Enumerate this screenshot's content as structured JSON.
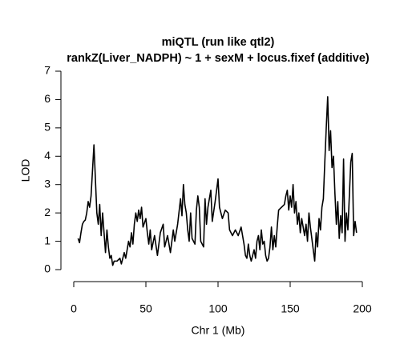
{
  "chart_data": {
    "type": "line",
    "title": "miQTL (run like qtl2)",
    "subtitle": "rankZ(Liver_NADPH) ~ 1 + sexM + locus.fixef (additive)",
    "xlabel": "Chr 1 (Mb)",
    "ylabel": "LOD",
    "xlim": [
      0,
      200
    ],
    "ylim": [
      0,
      7
    ],
    "xticks": [
      0,
      50,
      100,
      150,
      200
    ],
    "yticks": [
      0,
      1,
      2,
      3,
      4,
      5,
      6,
      7
    ],
    "grid": false,
    "series": [
      {
        "name": "LOD",
        "color": "#000000",
        "x": [
          3,
          4,
          5,
          6,
          7,
          8,
          9,
          10,
          11,
          12,
          13,
          14,
          15,
          16,
          17,
          18,
          19,
          20,
          21,
          22,
          23,
          24,
          25,
          26,
          27,
          28,
          30,
          32,
          33,
          35,
          36,
          38,
          39,
          40,
          41,
          42,
          43,
          44,
          45,
          46,
          47,
          48,
          50,
          51,
          52,
          53,
          54,
          56,
          58,
          60,
          62,
          63,
          65,
          67,
          69,
          70,
          72,
          74,
          75,
          76,
          77,
          78,
          79,
          80,
          81,
          82,
          84,
          85,
          86,
          87,
          88,
          90,
          91,
          92,
          93,
          95,
          96,
          98,
          100,
          101,
          103,
          105,
          107,
          108,
          110,
          112,
          114,
          116,
          118,
          119,
          120,
          121,
          122,
          123,
          124,
          125,
          126,
          127,
          128,
          129,
          130,
          131,
          132,
          133,
          134,
          135,
          136,
          137,
          138,
          139,
          140,
          141,
          142,
          144,
          146,
          147,
          148,
          149,
          150,
          151,
          152,
          153,
          154,
          155,
          156,
          157,
          158,
          160,
          161,
          162,
          163,
          164,
          166,
          167,
          168,
          169,
          170,
          171,
          172,
          173,
          174,
          175,
          176,
          177,
          178,
          179,
          180,
          181,
          182,
          183,
          184,
          185,
          186,
          187,
          188,
          189,
          190,
          191,
          192,
          193,
          194,
          195,
          196
        ],
        "values": [
          1.1,
          0.95,
          1.3,
          1.6,
          1.7,
          1.75,
          2.0,
          2.4,
          2.2,
          2.6,
          3.5,
          4.4,
          3.2,
          2.0,
          1.6,
          2.3,
          1.2,
          2.0,
          1.3,
          0.6,
          1.4,
          0.8,
          0.4,
          0.5,
          0.15,
          0.3,
          0.3,
          0.4,
          0.2,
          0.6,
          0.4,
          1.0,
          0.8,
          1.3,
          0.9,
          1.6,
          2.0,
          1.7,
          2.1,
          1.8,
          2.2,
          1.5,
          1.8,
          1.3,
          0.9,
          1.4,
          0.7,
          1.2,
          0.5,
          1.3,
          1.6,
          0.8,
          1.2,
          0.6,
          1.4,
          1.0,
          1.6,
          2.5,
          1.9,
          3.0,
          2.3,
          2.0,
          1.4,
          1.0,
          2.0,
          1.1,
          0.9,
          2.1,
          2.6,
          2.2,
          1.0,
          0.8,
          2.5,
          1.6,
          2.2,
          2.8,
          1.7,
          2.4,
          3.2,
          2.2,
          1.8,
          2.1,
          2.0,
          1.4,
          1.2,
          1.4,
          1.2,
          1.5,
          0.9,
          0.5,
          0.4,
          0.9,
          0.5,
          0.3,
          0.5,
          0.7,
          0.4,
          1.0,
          1.2,
          0.7,
          1.4,
          0.9,
          1.0,
          0.5,
          0.3,
          0.4,
          0.8,
          1.5,
          0.7,
          1.2,
          0.8,
          1.5,
          2.1,
          2.2,
          2.3,
          2.6,
          2.8,
          2.1,
          2.6,
          2.2,
          3.0,
          2.0,
          2.4,
          1.6,
          2.0,
          1.3,
          1.8,
          1.2,
          1.6,
          1.0,
          2.0,
          1.5,
          0.7,
          0.3,
          1.3,
          0.8,
          1.8,
          1.4,
          2.2,
          2.5,
          3.8,
          5.0,
          6.1,
          4.2,
          4.9,
          3.6,
          4.0,
          2.7,
          1.6,
          2.4,
          1.1,
          1.9,
          1.3,
          3.9,
          1.0,
          2.0,
          1.4,
          2.6,
          3.8,
          4.1,
          1.2,
          1.7,
          1.3
        ]
      }
    ]
  }
}
